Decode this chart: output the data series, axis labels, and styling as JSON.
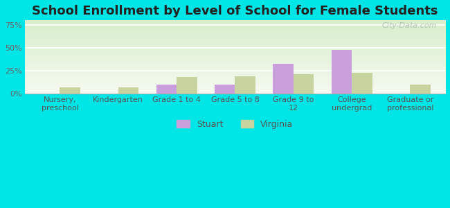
{
  "title": "School Enrollment by Level of School for Female Students",
  "categories": [
    "Nursery,\npreschool",
    "Kindergarten",
    "Grade 1 to 4",
    "Grade 5 to 8",
    "Grade 9 to\n12",
    "College\nundergrad",
    "Graduate or\nprofessional"
  ],
  "stuart": [
    0,
    0,
    10,
    10,
    33,
    48,
    0
  ],
  "virginia": [
    7,
    7,
    18,
    19,
    21,
    23,
    10
  ],
  "stuart_color": "#c9a0dc",
  "virginia_color": "#c8d4a0",
  "bg_outer": "#00e5e5",
  "plot_bg_top": "#e8f5e0",
  "plot_bg_bottom": "#f5faf0",
  "yticks": [
    0,
    25,
    50,
    75
  ],
  "ylim": [
    0,
    80
  ],
  "bar_width": 0.35,
  "legend_labels": [
    "Stuart",
    "Virginia"
  ],
  "title_fontsize": 13,
  "tick_fontsize": 8.0
}
